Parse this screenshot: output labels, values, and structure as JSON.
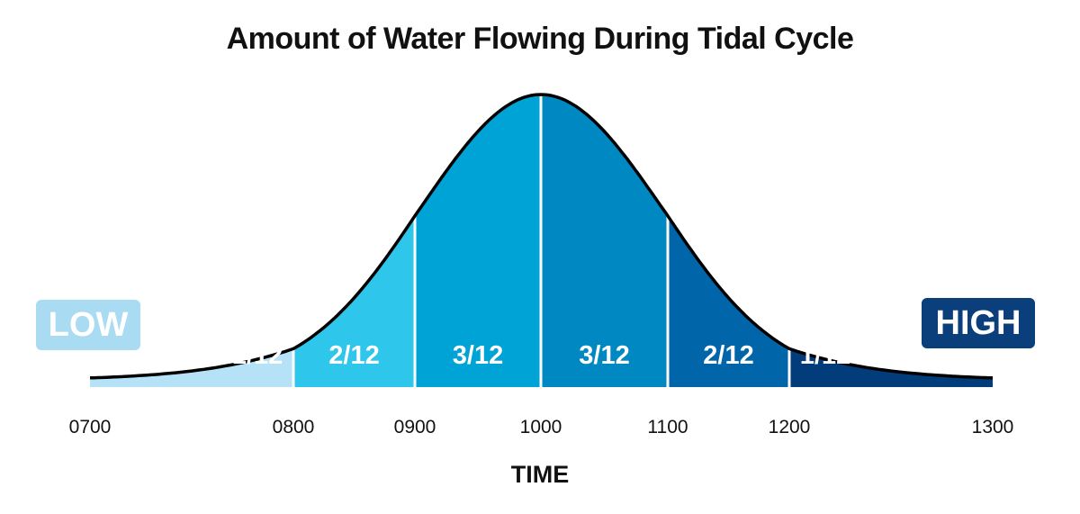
{
  "chart_data": {
    "type": "area",
    "title": "Amount of Water Flowing During Tidal Cycle",
    "xlabel": "TIME",
    "ylabel": "",
    "x_ticks": [
      "0700",
      "0800",
      "0900",
      "1000",
      "1100",
      "1200",
      "1300"
    ],
    "x_tick_values": [
      700,
      800,
      900,
      1000,
      1100,
      1200,
      1300
    ],
    "xlim": [
      700,
      1300
    ],
    "segments": [
      {
        "label": "1/12",
        "start": 700,
        "end": 800,
        "fraction": 0.0833,
        "color": "#b5e2f6"
      },
      {
        "label": "2/12",
        "start": 800,
        "end": 900,
        "fraction": 0.1667,
        "color": "#2ec6ea"
      },
      {
        "label": "3/12",
        "start": 900,
        "end": 1000,
        "fraction": 0.25,
        "color": "#00a3d6"
      },
      {
        "label": "3/12",
        "start": 1000,
        "end": 1100,
        "fraction": 0.25,
        "color": "#0088c2"
      },
      {
        "label": "2/12",
        "start": 1100,
        "end": 1200,
        "fraction": 0.1667,
        "color": "#0066a9"
      },
      {
        "label": "1/12",
        "start": 1200,
        "end": 1300,
        "fraction": 0.0833,
        "color": "#023c7a"
      }
    ],
    "low_label": "LOW",
    "high_label": "HIGH",
    "grid": false,
    "legend": "none"
  }
}
